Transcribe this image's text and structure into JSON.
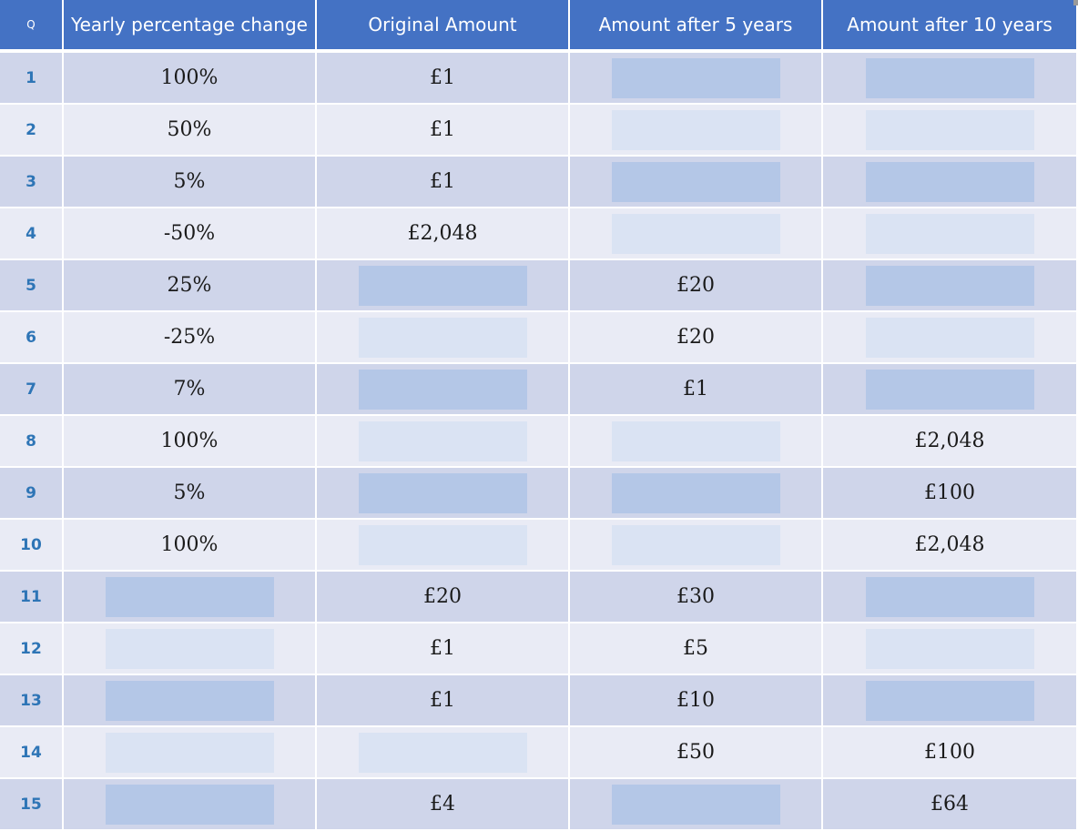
{
  "table": {
    "headers": [
      "Q",
      "Yearly percentage change",
      "Original Amount",
      "Amount after 5 years",
      "Amount after 10 years"
    ],
    "rows": [
      {
        "q": "1",
        "cells": [
          "100%",
          "£1",
          null,
          null
        ]
      },
      {
        "q": "2",
        "cells": [
          "50%",
          "£1",
          null,
          null
        ]
      },
      {
        "q": "3",
        "cells": [
          "5%",
          "£1",
          null,
          null
        ]
      },
      {
        "q": "4",
        "cells": [
          "-50%",
          "£2,048",
          null,
          null
        ]
      },
      {
        "q": "5",
        "cells": [
          "25%",
          null,
          "£20",
          null
        ]
      },
      {
        "q": "6",
        "cells": [
          "-25%",
          null,
          "£20",
          null
        ]
      },
      {
        "q": "7",
        "cells": [
          "7%",
          null,
          "£1",
          null
        ]
      },
      {
        "q": "8",
        "cells": [
          "100%",
          null,
          null,
          "£2,048"
        ]
      },
      {
        "q": "9",
        "cells": [
          "5%",
          null,
          null,
          "£100"
        ]
      },
      {
        "q": "10",
        "cells": [
          "100%",
          null,
          null,
          "£2,048"
        ]
      },
      {
        "q": "11",
        "cells": [
          null,
          "£20",
          "£30",
          null
        ]
      },
      {
        "q": "12",
        "cells": [
          null,
          "£1",
          "£5",
          null
        ]
      },
      {
        "q": "13",
        "cells": [
          null,
          "£1",
          "£10",
          null
        ]
      },
      {
        "q": "14",
        "cells": [
          null,
          null,
          "£50",
          "£100"
        ]
      },
      {
        "q": "15",
        "cells": [
          null,
          "£4",
          null,
          "£64"
        ]
      }
    ]
  },
  "colors": {
    "header_bg": "#4472c4",
    "row_dark": "#cfd5ea",
    "row_light": "#e9ebf5",
    "blank_dark": "#b4c7e7",
    "blank_light": "#dae3f3",
    "qnum_color": "#2e75b6"
  }
}
